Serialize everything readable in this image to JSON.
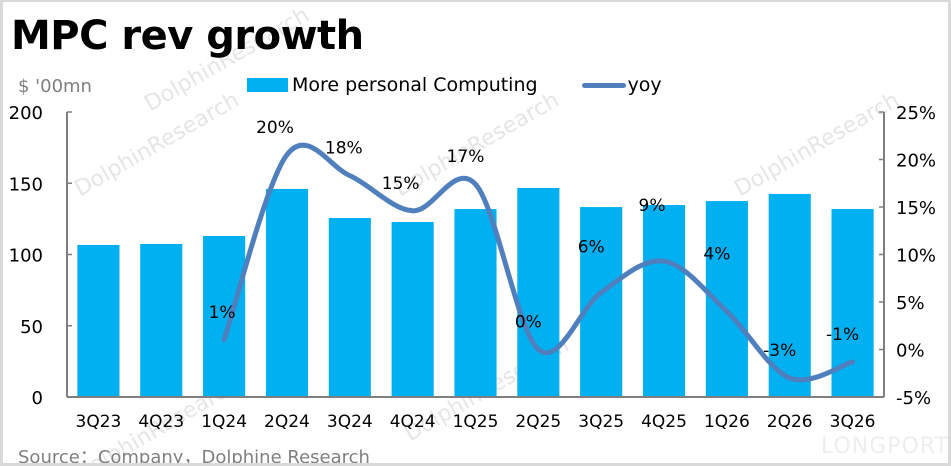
{
  "title": "MPC rev growth",
  "unit_label": "$ '00mn",
  "source": "Source：Company，Dolphine Research",
  "watermark": "DolphinResearch",
  "brand_watermark": "LONGPORT",
  "colors": {
    "bar": "#00b0f0",
    "line": "#4f7fbd",
    "axis": "#7f7f7f"
  },
  "legend": [
    {
      "label": "More personal Computing",
      "type": "bar"
    },
    {
      "label": "yoy",
      "type": "line"
    }
  ],
  "chart_data": {
    "type": "bar",
    "title": "MPC rev growth",
    "xlabel": "",
    "ylabel": "$ '00mn",
    "y2label": "yoy",
    "categories": [
      "3Q23",
      "4Q23",
      "1Q24",
      "2Q24",
      "3Q24",
      "4Q24",
      "1Q25",
      "2Q25",
      "3Q25",
      "4Q25",
      "1Q26",
      "2Q26",
      "3Q26"
    ],
    "series": [
      {
        "name": "More personal Computing",
        "type": "bar",
        "axis": "left",
        "values": [
          106.7,
          107.4,
          113.0,
          146.0,
          125.6,
          122.8,
          131.9,
          146.7,
          133.3,
          134.7,
          137.5,
          142.5,
          131.9
        ]
      },
      {
        "name": "yoy",
        "type": "line",
        "axis": "right",
        "smooth": true,
        "values": [
          null,
          null,
          1,
          20.5,
          18.3,
          14.6,
          17.4,
          0,
          6,
          9.3,
          4,
          -3,
          -1.3
        ],
        "labels": [
          "",
          "",
          "1%",
          "20%",
          "18%",
          "15%",
          "17%",
          "0%",
          "6%",
          "9%",
          "4%",
          "-3%",
          "-1%"
        ]
      }
    ],
    "ylim": [
      0,
      200
    ],
    "yticks": [
      "0",
      "50",
      "100",
      "150",
      "200"
    ],
    "y2lim": [
      -5,
      25
    ],
    "y2ticks": [
      "-5%",
      "0%",
      "5%",
      "10%",
      "15%",
      "20%",
      "25%"
    ],
    "grid": false,
    "legend_position": "top"
  }
}
